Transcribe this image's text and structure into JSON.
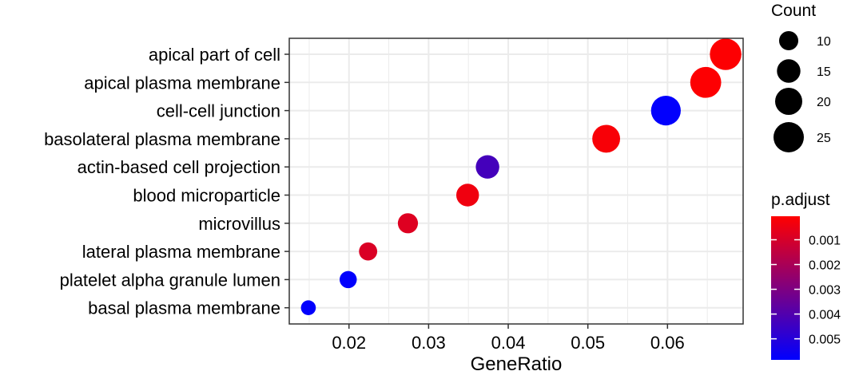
{
  "chart_data": {
    "type": "scatter",
    "xlabel": "GeneRatio",
    "ylabel": "",
    "title": "",
    "xlim": [
      0.0125,
      0.0695
    ],
    "xticks": [
      0.02,
      0.03,
      0.04,
      0.05,
      0.06
    ],
    "xtick_labels": [
      "0.02",
      "0.03",
      "0.04",
      "0.05",
      "0.06"
    ],
    "grid": true,
    "categories": [
      "apical part of cell",
      "apical plasma membrane",
      "cell-cell junction",
      "basolateral plasma membrane",
      "actin-based cell projection",
      "blood microparticle",
      "microvillus",
      "lateral plasma membrane",
      "platelet alpha granule lumen",
      "basal plasma membrane"
    ],
    "points": [
      {
        "term": "apical part of cell",
        "gene_ratio": 0.0673,
        "count": 27,
        "p_adjust": 0.0001
      },
      {
        "term": "apical plasma membrane",
        "gene_ratio": 0.0648,
        "count": 26,
        "p_adjust": 0.0001
      },
      {
        "term": "cell-cell junction",
        "gene_ratio": 0.0598,
        "count": 24,
        "p_adjust": 0.0058
      },
      {
        "term": "basolateral plasma membrane",
        "gene_ratio": 0.0523,
        "count": 21,
        "p_adjust": 0.0002
      },
      {
        "term": "actin-based cell projection",
        "gene_ratio": 0.0374,
        "count": 15,
        "p_adjust": 0.0043
      },
      {
        "term": "blood microparticle",
        "gene_ratio": 0.0349,
        "count": 14,
        "p_adjust": 0.0004
      },
      {
        "term": "microvillus",
        "gene_ratio": 0.0274,
        "count": 11,
        "p_adjust": 0.0008
      },
      {
        "term": "lateral plasma membrane",
        "gene_ratio": 0.0224,
        "count": 9,
        "p_adjust": 0.0009
      },
      {
        "term": "platelet alpha granule lumen",
        "gene_ratio": 0.0199,
        "count": 8,
        "p_adjust": 0.0058
      },
      {
        "term": "basal plasma membrane",
        "gene_ratio": 0.0149,
        "count": 6,
        "p_adjust": 0.0058
      }
    ],
    "size_legend": {
      "title": "Count",
      "values": [
        10,
        15,
        20,
        25
      ],
      "labels": [
        "10",
        "15",
        "20",
        "25"
      ]
    },
    "color_legend": {
      "title": "p.adjust",
      "range": [
        5e-05,
        0.00585
      ],
      "ticks": [
        0.001,
        0.002,
        0.003,
        0.004,
        0.005
      ],
      "tick_labels": [
        "0.001",
        "0.002",
        "0.003",
        "0.004",
        "0.005"
      ],
      "low_color": "#ff0000",
      "high_color": "#0000ff"
    }
  }
}
